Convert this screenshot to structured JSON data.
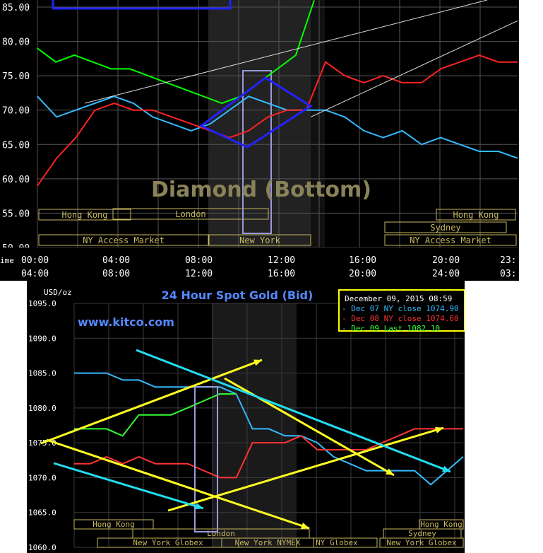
{
  "chart_data": [
    {
      "type": "line",
      "annotation": "Diamond (Bottom)",
      "ylim": [
        50,
        85
      ],
      "y_ticks": [
        "85.00",
        "80.00",
        "75.00",
        "70.00",
        "65.00",
        "60.00",
        "55.00",
        "50.00"
      ],
      "x_ticks_primary": [
        "00:00",
        "04:00",
        "08:00",
        "12:00",
        "16:00",
        "20:00",
        "23:"
      ],
      "x_ticks_secondary": [
        "04:00",
        "08:00",
        "12:00",
        "16:00",
        "20:00",
        "24:00",
        "03:"
      ],
      "x_axis_prefix": "ime",
      "sessions": [
        "Hong Kong",
        "London",
        "NY Access Market",
        "New York",
        "Sydney",
        "Hong Kong",
        "NY Access Market"
      ],
      "series": [
        {
          "color": "#00ff00",
          "x": [
            0,
            1,
            2,
            3,
            4,
            5,
            6,
            7,
            8,
            9,
            10,
            11,
            12,
            13,
            14,
            15
          ],
          "values": [
            79,
            77,
            78,
            77,
            76,
            76,
            75,
            74,
            73,
            72,
            71,
            72,
            74,
            76,
            78,
            86
          ]
        },
        {
          "color": "#33bbff",
          "x": [
            0,
            1,
            2,
            3,
            4,
            5,
            6,
            7,
            8,
            9,
            10,
            11,
            12,
            13,
            14,
            15,
            16,
            17,
            18,
            19,
            20,
            21,
            22,
            23,
            24,
            25
          ],
          "values": [
            72,
            69,
            70,
            71,
            72,
            71,
            69,
            68,
            67,
            68,
            70,
            72,
            71,
            70,
            70,
            70,
            69,
            67,
            66,
            67,
            65,
            66,
            65,
            64,
            64,
            63
          ]
        },
        {
          "color": "#ff2222",
          "x": [
            0,
            1,
            2,
            3,
            4,
            5,
            6,
            7,
            8,
            9,
            10,
            11,
            12,
            13,
            14,
            15,
            16,
            17,
            18,
            19,
            20,
            21,
            22,
            23,
            24,
            25
          ],
          "values": [
            59,
            63,
            66,
            70,
            71,
            70,
            70,
            69,
            68,
            67,
            66,
            67,
            69,
            70,
            70,
            77,
            75,
            74,
            75,
            74,
            74,
            76,
            77,
            78,
            77,
            77
          ]
        }
      ]
    },
    {
      "type": "line",
      "title": "24 Hour Spot Gold (Bid)",
      "ylabel": "USD/oz",
      "watermark": "www.kitco.com",
      "ylim": [
        1060,
        1095
      ],
      "y_ticks": [
        "1095.0",
        "1090.0",
        "1085.0",
        "1080.0",
        "1075.0",
        "1070.0",
        "1065.0",
        "1060.0"
      ],
      "sessions": [
        "Hong Kong",
        "London",
        "New York Globex",
        "New York NYMEX",
        "NY Globex",
        "Sydney",
        "Hong Kong",
        "New York Globex"
      ],
      "legend": {
        "header": "December 09, 2015 08:59",
        "entries": [
          {
            "text": "Dec 07 NY close 1074.90",
            "color": "#33bbff"
          },
          {
            "text": "Dec 08 NY close 1074.60",
            "color": "#ff3333"
          },
          {
            "text": "Dec 09 Last 1082.10",
            "color": "#33ff33"
          }
        ]
      },
      "series": [
        {
          "color": "#33bbff",
          "x": [
            0,
            1,
            2,
            3,
            4,
            5,
            6,
            7,
            8,
            9,
            10,
            11,
            12,
            13,
            14,
            15,
            16,
            17,
            18,
            19,
            20,
            21,
            22,
            23,
            24
          ],
          "values": [
            1085,
            1085,
            1085,
            1084,
            1084,
            1083,
            1083,
            1083,
            1083,
            1083,
            1082,
            1077,
            1077,
            1076,
            1076,
            1075,
            1073,
            1072,
            1071,
            1071,
            1071,
            1071,
            1069,
            1071,
            1073
          ]
        },
        {
          "color": "#33ff33",
          "x": [
            0,
            1,
            2,
            3,
            4,
            5,
            6,
            7,
            8,
            9,
            10
          ],
          "values": [
            1077,
            1077,
            1077,
            1076,
            1079,
            1079,
            1079,
            1080,
            1081,
            1082,
            1082
          ]
        },
        {
          "color": "#ff3333",
          "x": [
            0,
            1,
            2,
            3,
            4,
            5,
            6,
            7,
            8,
            9,
            10,
            11,
            12,
            13,
            14,
            15,
            16,
            17,
            18,
            19,
            20,
            21,
            22,
            23,
            24
          ],
          "values": [
            1072,
            1072,
            1073,
            1072,
            1073,
            1072,
            1072,
            1072,
            1071,
            1070,
            1070,
            1075,
            1075,
            1075,
            1076,
            1074,
            1074,
            1074,
            1074,
            1075,
            1076,
            1077,
            1077,
            1077,
            1077
          ]
        }
      ]
    }
  ],
  "colors": {
    "bg": "#000000",
    "grid": "#555555",
    "session_box": "#c8b860",
    "highlight_box": "#9999dd",
    "diamond": "#2222ff",
    "trend": "#ffff22",
    "trend2": "#22ddee"
  }
}
